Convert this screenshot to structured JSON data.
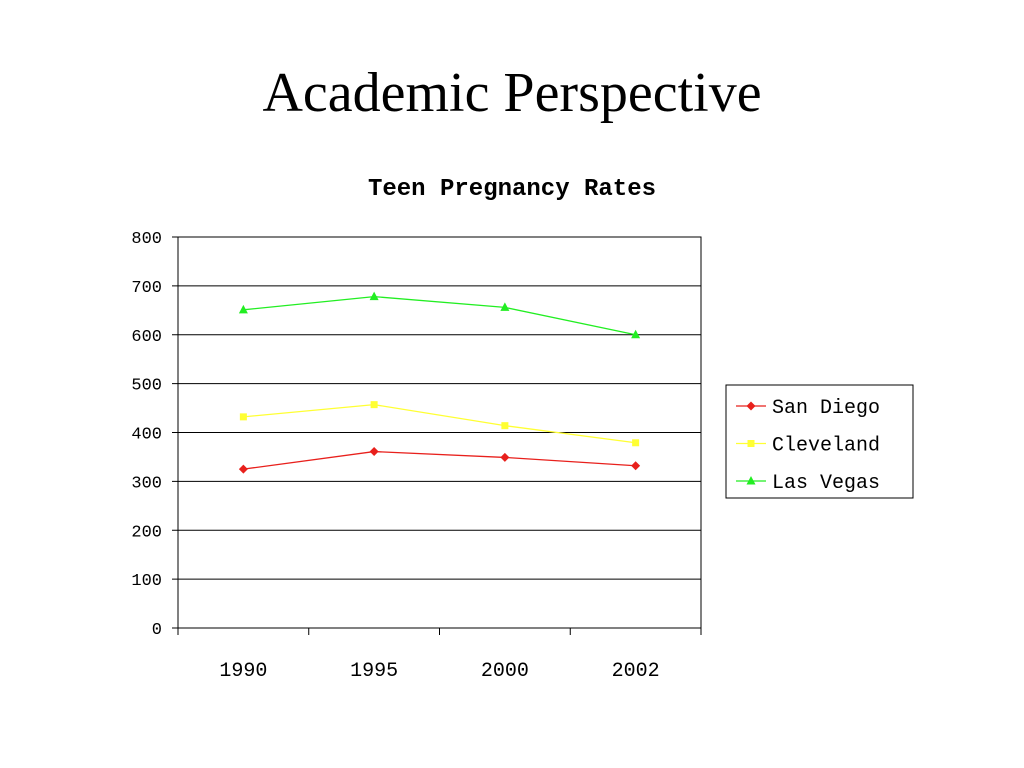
{
  "slide": {
    "title": "Academic Perspective"
  },
  "chart_data": {
    "type": "line",
    "title": "Teen Pregnancy Rates",
    "categories": [
      "1990",
      "1995",
      "2000",
      "2002"
    ],
    "ylim": [
      0,
      800
    ],
    "yticks": [
      0,
      100,
      200,
      300,
      400,
      500,
      600,
      700,
      800
    ],
    "grid": true,
    "legend_position": "right",
    "series": [
      {
        "name": "San Diego",
        "values": [
          325,
          361,
          349,
          332
        ],
        "color": "#e8201c",
        "marker": "diamond"
      },
      {
        "name": "Cleveland",
        "values": [
          432,
          457,
          414,
          379
        ],
        "color": "#ffff33",
        "marker": "square"
      },
      {
        "name": "Las Vegas",
        "values": [
          651,
          678,
          656,
          600
        ],
        "color": "#22ee22",
        "marker": "triangle"
      }
    ]
  }
}
